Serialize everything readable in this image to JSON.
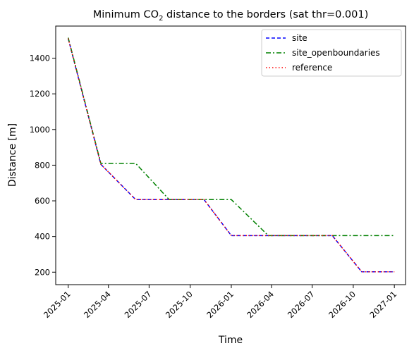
{
  "chart_data": {
    "type": "line",
    "title_main": "Minimum CO",
    "title_sub": "2",
    "title_rest": " distance to the borders (sat thr=0.001)",
    "xlabel": "Time",
    "ylabel": "Distance [m]",
    "xlim": [
      "2024-12-04",
      "2027-01-26"
    ],
    "ylim": [
      130,
      1580
    ],
    "x_ticks": [
      "2025-01",
      "2025-04",
      "2025-07",
      "2025-10",
      "2026-01",
      "2026-04",
      "2026-07",
      "2026-10",
      "2027-01"
    ],
    "y_ticks": [
      200,
      400,
      600,
      800,
      1000,
      1200,
      1400
    ],
    "legend_position": "top-right",
    "grid": false,
    "series": [
      {
        "name": "site",
        "color": "#0000ff",
        "style": "dashed",
        "points": [
          [
            "2025-01-01",
            1510
          ],
          [
            "2025-03-15",
            805
          ],
          [
            "2025-06-01",
            607
          ],
          [
            "2025-11-01",
            607
          ],
          [
            "2026-01-01",
            405
          ],
          [
            "2026-08-15",
            405
          ],
          [
            "2026-10-20",
            202
          ],
          [
            "2027-01-01",
            202
          ]
        ]
      },
      {
        "name": "site_openboundaries",
        "color": "#008000",
        "style": "dashdot",
        "points": [
          [
            "2025-01-01",
            1515
          ],
          [
            "2025-03-15",
            810
          ],
          [
            "2025-06-01",
            810
          ],
          [
            "2025-08-15",
            607
          ],
          [
            "2026-01-01",
            607
          ],
          [
            "2026-03-25",
            405
          ],
          [
            "2027-01-01",
            405
          ]
        ]
      },
      {
        "name": "reference",
        "color": "#ff0000",
        "style": "dotted",
        "points": [
          [
            "2025-01-01",
            1510
          ],
          [
            "2025-03-15",
            805
          ],
          [
            "2025-06-01",
            607
          ],
          [
            "2025-11-01",
            607
          ],
          [
            "2026-01-01",
            405
          ],
          [
            "2026-08-15",
            405
          ],
          [
            "2026-10-20",
            202
          ],
          [
            "2027-01-01",
            202
          ]
        ]
      }
    ]
  }
}
